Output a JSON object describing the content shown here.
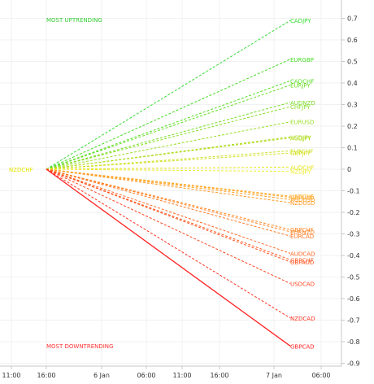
{
  "header": {
    "top_label": "MOST UPTRENDING",
    "bottom_label": "MOST DOWNTRENDING",
    "origin_label": "NZDCHF"
  },
  "colors": {
    "background": "#ffffff",
    "axis": "#c8c8c8",
    "grid": "#f1f1f1",
    "top_label": "#33cc33",
    "bottom_label": "#ff3333",
    "origin_label": "#e6e600"
  },
  "chart_data": {
    "type": "line",
    "x_ticks": [
      "11:00",
      "16:00",
      "6 Jan",
      "06:00",
      "11:00",
      "16:00",
      "7 Jan",
      "06:00"
    ],
    "y_ticks": [
      "0.7",
      "0.6",
      "0.5",
      "0.4",
      "0.3",
      "0.2",
      "0.1",
      "0",
      "-0.1",
      "-0.2",
      "-0.3",
      "-0.4",
      "-0.5",
      "-0.6",
      "-0.7",
      "-0.8",
      "-0.9"
    ],
    "ylim": [
      -0.93,
      0.76
    ],
    "origin_value": 0,
    "series": [
      {
        "name": "CADJPY",
        "value": 0.69,
        "color": "#33dd33",
        "solid": false
      },
      {
        "name": "EURGBP",
        "value": 0.51,
        "color": "#44dd22",
        "solid": false
      },
      {
        "name": "CADCHF",
        "value": 0.41,
        "color": "#55dd22",
        "solid": false
      },
      {
        "name": "EURJPY",
        "value": 0.39,
        "color": "#66dd22",
        "solid": false
      },
      {
        "name": "AUDNZD",
        "value": 0.31,
        "color": "#77dd22",
        "solid": false
      },
      {
        "name": "CHFJPY",
        "value": 0.29,
        "color": "#88dd22",
        "solid": false
      },
      {
        "name": "EURUSD",
        "value": 0.22,
        "color": "#99dd22",
        "solid": false
      },
      {
        "name": "USDJPY",
        "value": 0.15,
        "color": "#aadd22",
        "solid": false
      },
      {
        "name": "AUDJPY",
        "value": 0.145,
        "color": "#b5dd22",
        "solid": false
      },
      {
        "name": "EURCHF",
        "value": 0.085,
        "color": "#cce022",
        "solid": false
      },
      {
        "name": "GBPJPY",
        "value": 0.075,
        "color": "#d5e022",
        "solid": false
      },
      {
        "name": "AUDCHF",
        "value": 0.01,
        "color": "#e6e622",
        "solid": false
      },
      {
        "name": "NZDJPY",
        "value": -0.01,
        "color": "#eeee33",
        "solid": false
      },
      {
        "name": "USDCHF",
        "value": -0.125,
        "color": "#ffaa22",
        "solid": false
      },
      {
        "name": "GBPUSD",
        "value": -0.13,
        "color": "#ffa422",
        "solid": false
      },
      {
        "name": "AUDUSD",
        "value": -0.14,
        "color": "#ff9f22",
        "solid": false
      },
      {
        "name": "NZDUSD",
        "value": -0.155,
        "color": "#ff9922",
        "solid": false
      },
      {
        "name": "GBPCHF",
        "value": -0.28,
        "color": "#ff8822",
        "solid": false
      },
      {
        "name": "EURNZD",
        "value": -0.29,
        "color": "#ff8022",
        "solid": false
      },
      {
        "name": "EURCAD",
        "value": -0.31,
        "color": "#ff7722",
        "solid": false
      },
      {
        "name": "AUDCAD",
        "value": -0.39,
        "color": "#ff6622",
        "solid": false
      },
      {
        "name": "GBPCHF",
        "value": -0.42,
        "color": "#ff5a22",
        "solid": false
      },
      {
        "name": "GBPAUD",
        "value": -0.43,
        "color": "#ff5522",
        "solid": false
      },
      {
        "name": "USDCAD",
        "value": -0.53,
        "color": "#ff4422",
        "solid": false
      },
      {
        "name": "NZDCAD",
        "value": -0.69,
        "color": "#ff3322",
        "solid": false
      },
      {
        "name": "GBPCAD",
        "value": -0.82,
        "color": "#ff2222",
        "solid": true
      }
    ]
  }
}
